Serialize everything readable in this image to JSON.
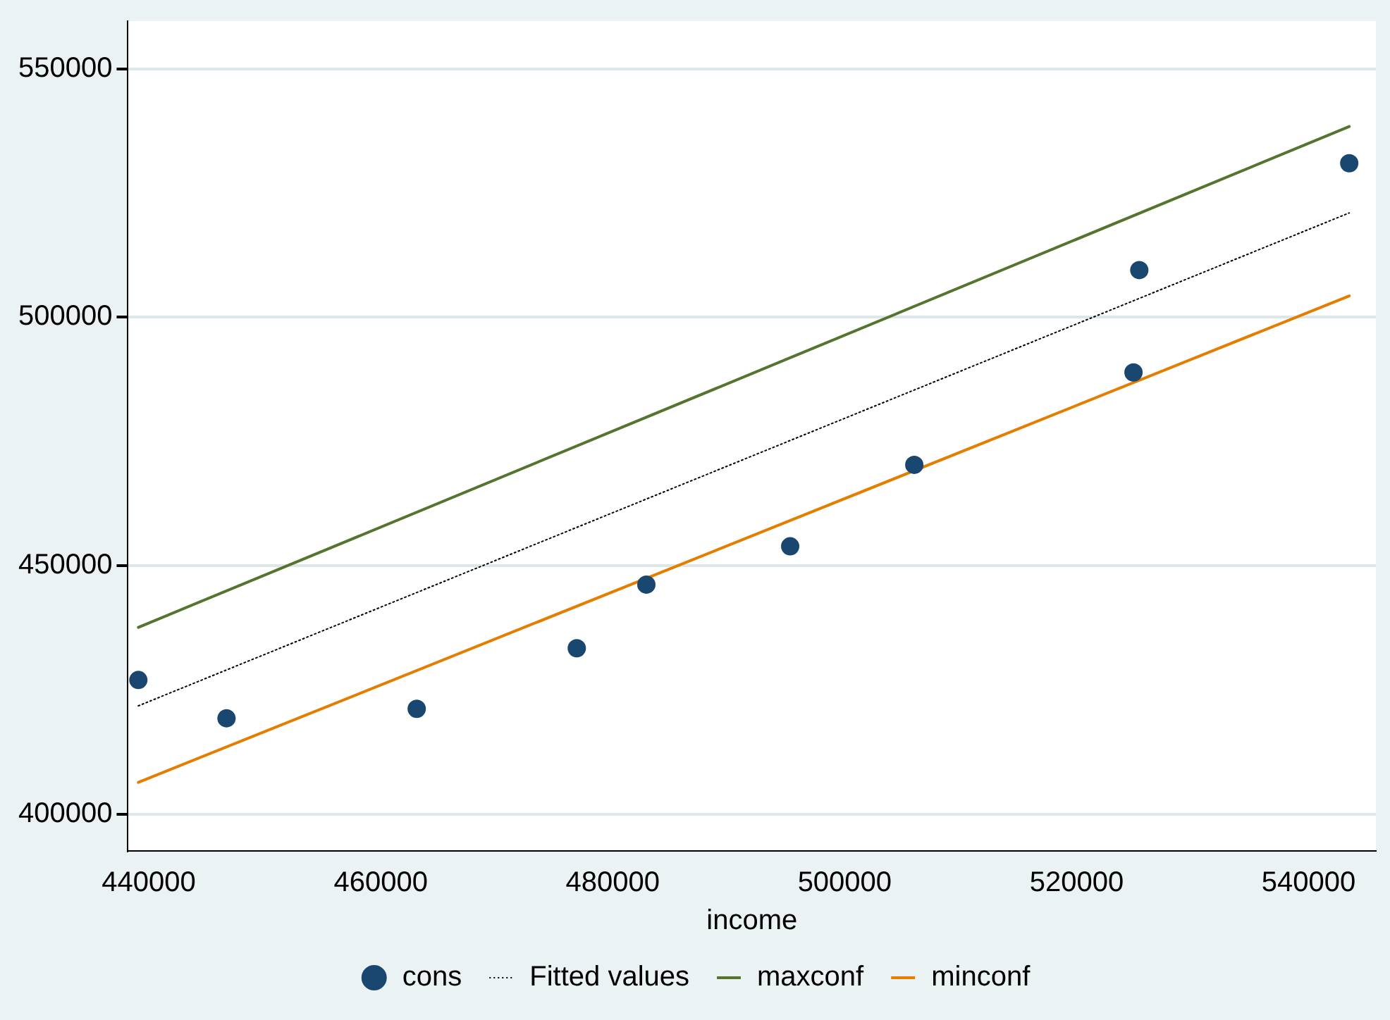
{
  "chart_data": {
    "type": "scatter",
    "xlabel": "income",
    "xlim": [
      438200,
      545800
    ],
    "xticks": [
      440000,
      460000,
      480000,
      500000,
      520000,
      540000
    ],
    "ylim": [
      392600,
      559600
    ],
    "yticks": [
      400000,
      450000,
      500000,
      550000
    ],
    "grid": "y",
    "legend": "bottom",
    "series": [
      {
        "name": "cons",
        "color": "#1a476f",
        "marker": "circle",
        "x": [
          439100,
          446700,
          463100,
          476900,
          482900,
          495300,
          506000,
          524900,
          525400,
          543500
        ],
        "values": [
          427000,
          419300,
          421200,
          433400,
          446200,
          453900,
          470300,
          488900,
          509500,
          531000
        ]
      },
      {
        "name": "Fitted values",
        "type": "line",
        "color": "#000000",
        "line_style": "dotted",
        "marker": "none",
        "x": [
          439100,
          543500
        ],
        "values": [
          421800,
          521000
        ]
      },
      {
        "name": "maxconf",
        "type": "line",
        "color": "#55752f",
        "line_style": "solid",
        "marker": "none",
        "x": [
          439100,
          543500
        ],
        "values": [
          437600,
          538400
        ]
      },
      {
        "name": "minconf",
        "type": "line",
        "color": "#e37e00",
        "line_style": "solid",
        "marker": "none",
        "x": [
          439100,
          543500
        ],
        "values": [
          406400,
          504300
        ]
      }
    ]
  }
}
